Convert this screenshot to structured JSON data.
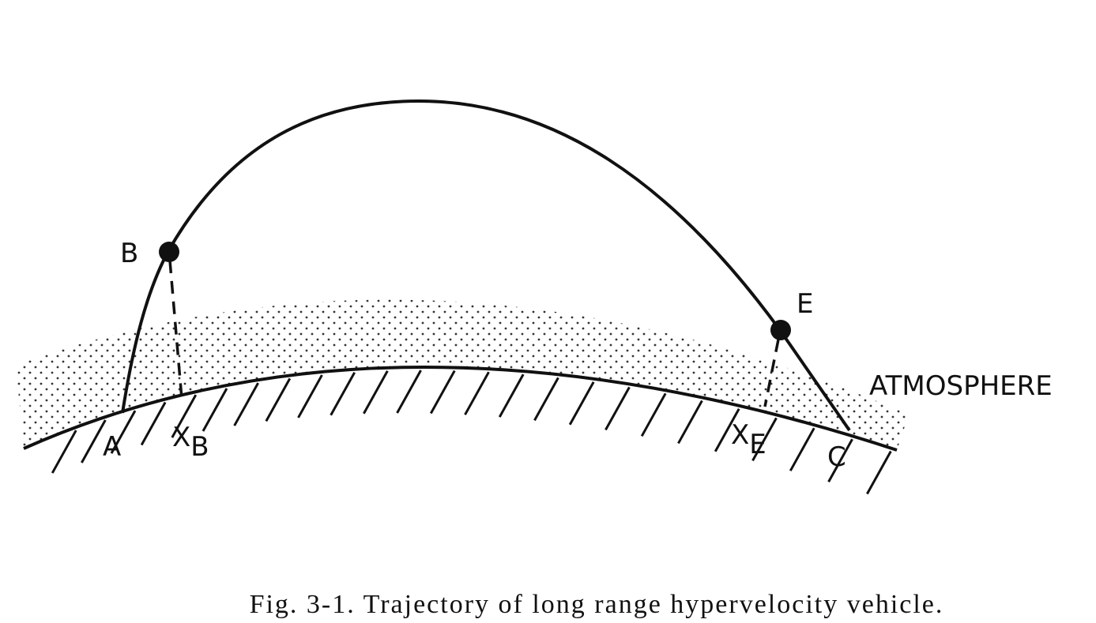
{
  "diagram": {
    "labels": {
      "b": "B",
      "a": "A",
      "x_b": {
        "main": "X",
        "sub": "B"
      },
      "x_e": {
        "main": "X",
        "sub": "E"
      },
      "e": "E",
      "c": "C",
      "atmosphere": "ATMOSPHERE"
    },
    "caption": "Fig. 3-1.  Trajectory of long range hypervelocity vehicle."
  }
}
